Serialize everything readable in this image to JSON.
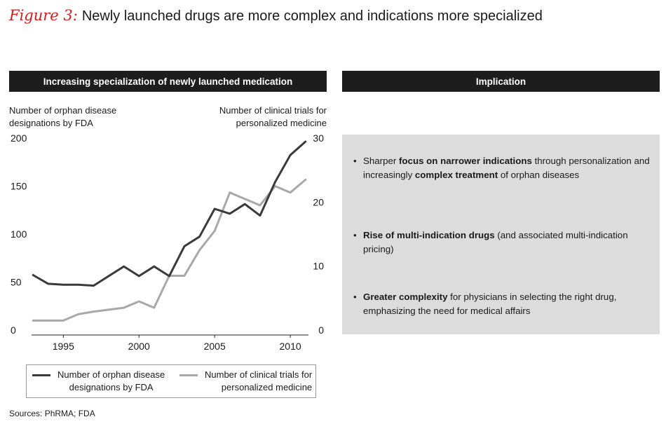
{
  "figure": {
    "label": "Figure 3:",
    "title": "Newly launched drugs are more complex and indications more specialized"
  },
  "left_panel": {
    "header": "Increasing specialization of newly launched medication",
    "left_axis_label_line1": "Number of orphan disease",
    "left_axis_label_line2": "designations by FDA",
    "right_axis_label_line1": "Number of clinical trials for",
    "right_axis_label_line2": "personalized medicine"
  },
  "right_panel": {
    "header": "Implication",
    "bullets": [
      {
        "pre": "Sharper ",
        "bold": "focus on narrower indications",
        "post": " through personalization and increasingly ",
        "bold2": "complex treatment",
        "post2": " of orphan diseases"
      },
      {
        "pre": "",
        "bold": "Rise of multi-indication drugs",
        "post": " (and associated multi-indication pricing)",
        "bold2": "",
        "post2": ""
      },
      {
        "pre": "",
        "bold": "Greater complexity",
        "post": " for physicians in selecting the right drug, emphasizing the need for medical affairs",
        "bold2": "",
        "post2": ""
      }
    ]
  },
  "legend": {
    "orphan_line1": "Number of orphan disease",
    "orphan_line2": "designations by FDA",
    "trials_line1": "Number of clinical trials for",
    "trials_line2": "personalized medicine"
  },
  "sources": "Sources: PhRMA; FDA",
  "colors": {
    "orphan_series": "#3a3a3a",
    "trials_series": "#a8a8a8",
    "header_bg": "#1d1d1d",
    "implication_bg": "#dcdcdc",
    "figure_label": "#cc1f1f"
  },
  "chart_data": {
    "type": "line",
    "title": "Increasing specialization of newly launched medication",
    "xlabel": "",
    "xlim": [
      1992.9,
      2011.2
    ],
    "x_ticks": [
      1995,
      2000,
      2005,
      2010
    ],
    "y_left": {
      "label": "Number of orphan disease designations by FDA",
      "lim": [
        0,
        200
      ],
      "ticks": [
        0,
        50,
        100,
        150,
        200
      ]
    },
    "y_right": {
      "label": "Number of clinical trials for personalized medicine",
      "lim": [
        0,
        30
      ],
      "ticks": [
        0,
        10,
        20,
        30
      ]
    },
    "grid": false,
    "legend_position": "bottom",
    "series": [
      {
        "name": "Number of orphan disease designations by FDA",
        "axis": "left",
        "x": [
          1993,
          1994,
          1995,
          1996,
          1997,
          1998,
          1999,
          2000,
          2001,
          2002,
          2003,
          2004,
          2005,
          2006,
          2007,
          2008,
          2009,
          2010,
          2011
        ],
        "values": [
          58,
          49,
          48,
          48,
          47,
          57,
          67,
          57,
          67,
          57,
          88,
          98,
          127,
          122,
          132,
          120,
          155,
          183,
          197
        ]
      },
      {
        "name": "Number of clinical trials for personalized medicine",
        "axis": "right",
        "x": [
          1993,
          1994,
          1995,
          1996,
          1997,
          1998,
          1999,
          2000,
          2001,
          2002,
          2003,
          2004,
          2005,
          2006,
          2007,
          2008,
          2009,
          2010,
          2011
        ],
        "values": [
          1.6,
          1.6,
          1.6,
          2.6,
          3.0,
          3.3,
          3.6,
          4.6,
          3.6,
          8.6,
          8.6,
          12.6,
          15.6,
          21.6,
          20.6,
          19.6,
          22.6,
          21.6,
          23.6
        ]
      }
    ]
  }
}
